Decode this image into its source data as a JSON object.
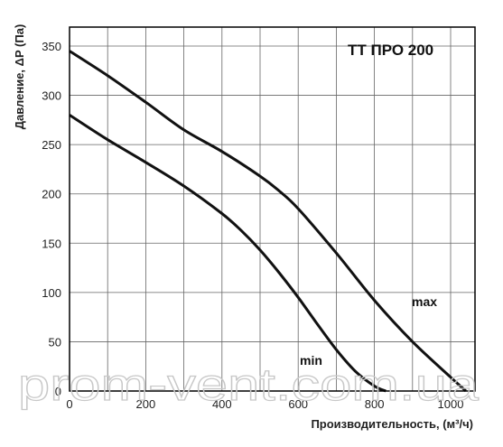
{
  "chart_data": {
    "type": "line",
    "title": "ТТ ПРО 200",
    "xlabel": "Производительность, (м³/ч)",
    "ylabel": "Давление, ΔP (Па)",
    "xlim": [
      0,
      1050
    ],
    "ylim": [
      0,
      360
    ],
    "xticks": [
      0,
      200,
      400,
      600,
      800,
      1000
    ],
    "yticks": [
      0,
      50,
      100,
      150,
      200,
      250,
      300,
      350
    ],
    "grid": true,
    "series": [
      {
        "name": "max",
        "x": [
          0,
          100,
          200,
          300,
          400,
          500,
          550,
          600,
          700,
          800,
          900,
          1000,
          1040
        ],
        "y": [
          345,
          320,
          293,
          265,
          243,
          218,
          203,
          185,
          140,
          92,
          50,
          14,
          0
        ]
      },
      {
        "name": "min",
        "x": [
          0,
          100,
          200,
          300,
          400,
          450,
          500,
          550,
          600,
          650,
          700,
          750,
          800,
          830
        ],
        "y": [
          280,
          255,
          232,
          208,
          180,
          163,
          143,
          120,
          95,
          68,
          42,
          20,
          5,
          0
        ]
      }
    ]
  },
  "watermark": "prom-vent.com.ua",
  "colors": {
    "line": "#111111",
    "grid": "#666666",
    "frame": "#000000"
  }
}
